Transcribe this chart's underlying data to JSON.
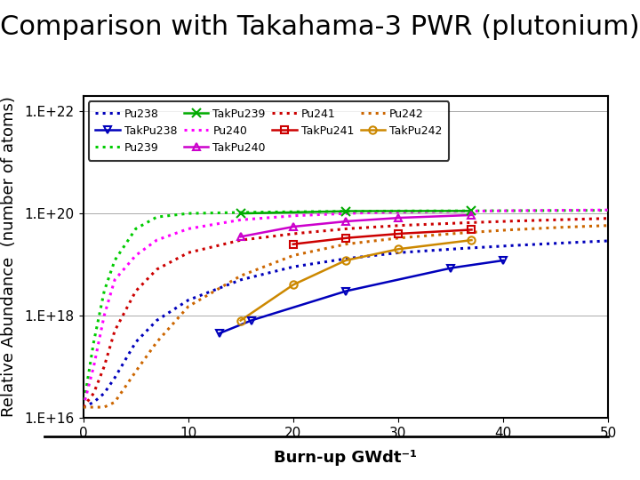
{
  "title": "Comparison with Takahama-3 PWR (plutonium)",
  "xlabel": "Burn-up GWdt⁻¹",
  "ylabel": "Relative Abundance  (number of atoms)",
  "xlim": [
    0,
    50
  ],
  "ylim_log": [
    1e+16,
    2e+22
  ],
  "yticks": [
    1e+16,
    1e+18,
    1e+20,
    1e+22
  ],
  "ytick_labels": [
    "1.E+16",
    "1.E+18",
    "1.E+20",
    "1.E+22"
  ],
  "xticks": [
    0,
    10,
    20,
    30,
    40,
    50
  ],
  "series": {
    "Pu238": {
      "color": "#0000bb",
      "style": "dotted",
      "data_x": [
        0,
        1,
        2,
        3,
        5,
        7,
        10,
        15,
        20,
        25,
        30,
        35,
        40,
        45,
        50
      ],
      "data_y": [
        1.6e+16,
        2e+16,
        3e+16,
        6e+16,
        3e+17,
        8e+17,
        2e+18,
        5e+18,
        9e+18,
        1.3e+19,
        1.7e+19,
        2e+19,
        2.3e+19,
        2.6e+19,
        2.9e+19
      ]
    },
    "TakPu238": {
      "color": "#0000bb",
      "style": "solid",
      "marker": "v",
      "data_x": [
        13,
        16,
        25,
        35,
        40
      ],
      "data_y": [
        4.5e+17,
        8e+17,
        3e+18,
        8.5e+18,
        1.2e+19
      ]
    },
    "Pu239": {
      "color": "#00cc00",
      "style": "dotted",
      "data_x": [
        0,
        1,
        2,
        3,
        5,
        7,
        10,
        15,
        20,
        25,
        30,
        35,
        40,
        45,
        50
      ],
      "data_y": [
        1.6e+16,
        3e+17,
        3e+18,
        1.2e+19,
        5e+19,
        8.5e+19,
        1e+20,
        1.05e+20,
        1.08e+20,
        1.1e+20,
        1.12e+20,
        1.12e+20,
        1.13e+20,
        1.14e+20,
        1.15e+20
      ]
    },
    "TakPu239": {
      "color": "#00aa00",
      "style": "solid",
      "marker": "x",
      "data_x": [
        15,
        25,
        37
      ],
      "data_y": [
        1e+20,
        1.11e+20,
        1.12e+20
      ]
    },
    "Pu240": {
      "color": "#ff00ff",
      "style": "dotted",
      "data_x": [
        0,
        1,
        2,
        3,
        5,
        7,
        10,
        15,
        20,
        25,
        30,
        35,
        40,
        45,
        50
      ],
      "data_y": [
        1.6e+16,
        1e+17,
        1e+18,
        5e+18,
        1.5e+19,
        3e+19,
        5e+19,
        7.5e+19,
        9e+19,
        1e+20,
        1.07e+20,
        1.1e+20,
        1.13e+20,
        1.15e+20,
        1.17e+20
      ]
    },
    "TakPu240": {
      "color": "#cc00cc",
      "style": "solid",
      "marker": "^",
      "data_x": [
        15,
        20,
        25,
        30,
        37
      ],
      "data_y": [
        3.5e+19,
        5.5e+19,
        7e+19,
        8.2e+19,
        9.3e+19
      ]
    },
    "Pu241": {
      "color": "#cc0000",
      "style": "dotted",
      "data_x": [
        0,
        1,
        2,
        3,
        5,
        7,
        10,
        15,
        20,
        25,
        30,
        35,
        40,
        45,
        50
      ],
      "data_y": [
        1.6e+16,
        3e+16,
        1e+17,
        5e+17,
        3e+18,
        8e+18,
        1.7e+19,
        3e+19,
        4e+19,
        5e+19,
        5.8e+19,
        6.4e+19,
        7e+19,
        7.5e+19,
        8e+19
      ]
    },
    "TakPu241": {
      "color": "#cc0000",
      "style": "solid",
      "marker": "s",
      "data_x": [
        20,
        25,
        30,
        37
      ],
      "data_y": [
        2.5e+19,
        3.3e+19,
        4e+19,
        4.8e+19
      ]
    },
    "Pu242": {
      "color": "#cc6600",
      "style": "dotted",
      "data_x": [
        0,
        1,
        2,
        3,
        5,
        7,
        10,
        15,
        20,
        25,
        30,
        35,
        40,
        45,
        50
      ],
      "data_y": [
        1.6e+16,
        1.6e+16,
        1.6e+16,
        2e+16,
        8e+16,
        3e+17,
        1.5e+18,
        6e+18,
        1.5e+19,
        2.5e+19,
        3.3e+19,
        4e+19,
        4.7e+19,
        5.3e+19,
        5.8e+19
      ]
    },
    "TakPu242": {
      "color": "#cc8800",
      "style": "solid",
      "marker": "o",
      "data_x": [
        15,
        20,
        25,
        30,
        37
      ],
      "data_y": [
        8e+17,
        4e+18,
        1.2e+19,
        2e+19,
        3e+19
      ]
    }
  },
  "title_fontsize": 22,
  "axis_fontsize": 13,
  "tick_fontsize": 11,
  "legend_fontsize": 9,
  "bg_color": "#ffffff"
}
